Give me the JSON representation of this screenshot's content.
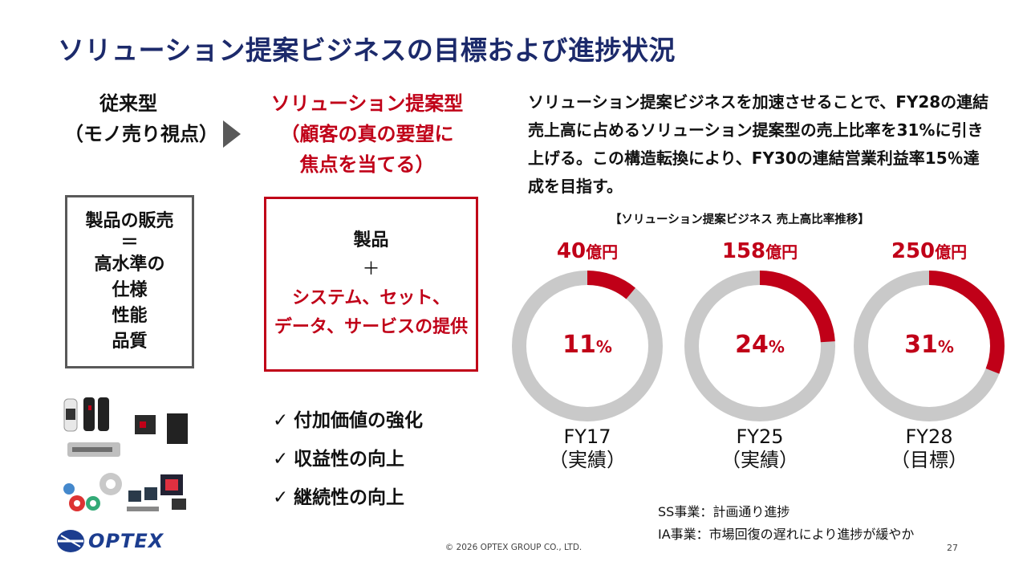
{
  "title": "ソリューション提案ビジネスの目標および進捗状況",
  "left": {
    "heading_line1": "従来型",
    "heading_line2": "（モノ売り視点）",
    "box_lines": [
      "製品の販売",
      "＝",
      "高水準の",
      "仕様",
      "性能",
      "品質"
    ]
  },
  "middle": {
    "heading_line1": "ソリューション提案型",
    "heading_line2": "（顧客の真の要望に",
    "heading_line3": "焦点を当てる）",
    "box_line1": "製品",
    "box_plus": "＋",
    "box_line2": "システム、セット、",
    "box_line3": "データ、サービスの提供",
    "checks": [
      "付加価値の強化",
      "収益性の向上",
      "継続性の向上"
    ],
    "check_glyph": "✓"
  },
  "right": {
    "description": "ソリューション提案ビジネスを加速させることで、FY28の連結売上高に占めるソリューション提案型の売上比率を31%に引き上げる。この構造転換により、FY30の連結営業利益率15％達成を目指す。"
  },
  "chart_data": {
    "type": "donut",
    "title": "【ソリューション提案ビジネス 売上高比率推移】",
    "amount_unit": "億円",
    "pct_unit": "%",
    "series": [
      {
        "amount": "40",
        "pct": 11,
        "fy": "FY17",
        "status": "（実績）"
      },
      {
        "amount": "158",
        "pct": 24,
        "fy": "FY25",
        "status": "（実績）"
      },
      {
        "amount": "250",
        "pct": 31,
        "fy": "FY28",
        "status": "（目標）"
      }
    ],
    "colors": {
      "filled": "#c00018",
      "remaining": "#c9c9c9"
    }
  },
  "notes": [
    "SS事業：計画通り進捗",
    "IA事業：市場回復の遅れにより進捗が緩やか"
  ],
  "footer": "© 2026 OPTEX GROUP CO., LTD.",
  "page_number": "27",
  "logo_text": "OPTEX",
  "colors": {
    "title": "#1c2a6b",
    "accent": "#c00018",
    "gray": "#595959"
  }
}
